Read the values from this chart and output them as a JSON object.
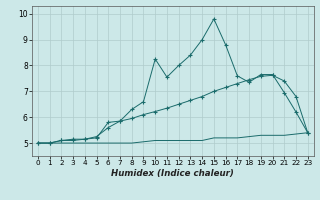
{
  "xlabel": "Humidex (Indice chaleur)",
  "bg_color": "#cce8e8",
  "grid_color": "#b0cccc",
  "line_color": "#1a6b6b",
  "xlim": [
    -0.5,
    23.5
  ],
  "ylim": [
    4.5,
    10.3
  ],
  "xticks": [
    0,
    1,
    2,
    3,
    4,
    5,
    6,
    7,
    8,
    9,
    10,
    11,
    12,
    13,
    14,
    15,
    16,
    17,
    18,
    19,
    20,
    21,
    22,
    23
  ],
  "yticks": [
    5,
    6,
    7,
    8,
    9,
    10
  ],
  "line1_x": [
    0,
    1,
    2,
    3,
    4,
    5,
    6,
    7,
    8,
    9,
    10,
    11,
    12,
    13,
    14,
    15,
    16,
    17,
    18,
    19,
    20,
    21,
    22,
    23
  ],
  "line1_y": [
    5.0,
    5.0,
    5.1,
    5.15,
    5.15,
    5.2,
    5.8,
    5.85,
    6.3,
    6.6,
    8.25,
    7.55,
    8.0,
    8.4,
    9.0,
    9.8,
    8.8,
    7.6,
    7.35,
    7.65,
    7.65,
    6.95,
    6.2,
    5.4
  ],
  "line2_x": [
    0,
    1,
    2,
    3,
    4,
    5,
    6,
    7,
    8,
    9,
    10,
    11,
    12,
    13,
    14,
    15,
    16,
    17,
    18,
    19,
    20,
    21,
    22,
    23
  ],
  "line2_y": [
    5.0,
    5.0,
    5.1,
    5.1,
    5.15,
    5.25,
    5.6,
    5.85,
    5.95,
    6.1,
    6.22,
    6.35,
    6.5,
    6.65,
    6.8,
    7.0,
    7.15,
    7.3,
    7.45,
    7.58,
    7.62,
    7.4,
    6.8,
    5.4
  ],
  "line3_x": [
    0,
    1,
    2,
    3,
    4,
    5,
    6,
    7,
    8,
    9,
    10,
    11,
    12,
    13,
    14,
    15,
    16,
    17,
    18,
    19,
    20,
    21,
    22,
    23
  ],
  "line3_y": [
    5.0,
    5.0,
    5.0,
    5.0,
    5.0,
    5.0,
    5.0,
    5.0,
    5.0,
    5.05,
    5.1,
    5.1,
    5.1,
    5.1,
    5.1,
    5.2,
    5.2,
    5.2,
    5.25,
    5.3,
    5.3,
    5.3,
    5.35,
    5.4
  ],
  "marker": "+"
}
